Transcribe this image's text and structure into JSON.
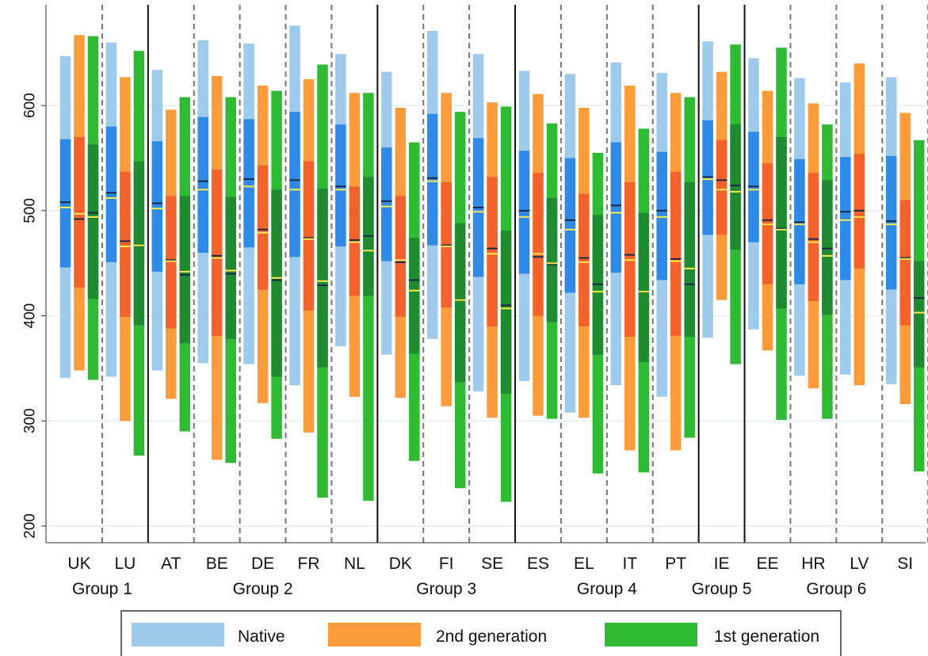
{
  "chart_data": {
    "type": "range-bar",
    "y_axis": {
      "min": 200,
      "max": 700,
      "ticks": [
        200,
        300,
        400,
        500,
        600
      ],
      "gridlines": true
    },
    "legend": {
      "position": "bottom",
      "entries": [
        {
          "key": "native",
          "label": "Native",
          "outer_color": "#9ecbeb",
          "inner_color": "#2e8ae6"
        },
        {
          "key": "second",
          "label": "2nd generation",
          "outer_color": "#fb9b3a",
          "inner_color": "#f4622c"
        },
        {
          "key": "first",
          "label": "1st generation",
          "outer_color": "#2fba34",
          "inner_color": "#1f8a2f"
        }
      ]
    },
    "groups": [
      {
        "label": "Group 1",
        "countries": [
          "UK",
          "LU"
        ]
      },
      {
        "label": "Group 2",
        "countries": [
          "AT",
          "BE",
          "DE",
          "FR",
          "NL"
        ]
      },
      {
        "label": "Group 3",
        "countries": [
          "DK",
          "FI",
          "SE"
        ]
      },
      {
        "label": "Group 4",
        "countries": [
          "ES",
          "EL",
          "IT",
          "PT"
        ]
      },
      {
        "label": "Group 5",
        "countries": [
          "IE"
        ]
      },
      {
        "label": "Group 6",
        "countries": [
          "EE",
          "HR",
          "LV",
          "SI"
        ]
      }
    ],
    "countries": [
      {
        "code": "UK",
        "series": {
          "native": {
            "p5": 341,
            "p25": 446,
            "median": 508,
            "mean": 503,
            "p75": 568,
            "p95": 647
          },
          "second": {
            "p5": 348,
            "p25": 427,
            "median": 492,
            "mean": 497,
            "p75": 570,
            "p95": 667
          },
          "first": {
            "p5": 339,
            "p25": 416,
            "median": 498,
            "mean": 494,
            "p75": 563,
            "p95": 666
          }
        }
      },
      {
        "code": "LU",
        "series": {
          "native": {
            "p5": 342,
            "p25": 451,
            "median": 517,
            "mean": 512,
            "p75": 580,
            "p95": 660
          },
          "second": {
            "p5": 300,
            "p25": 399,
            "median": 471,
            "mean": 466,
            "p75": 537,
            "p95": 627
          },
          "first": {
            "p5": 267,
            "p25": 391,
            "median": 467,
            "mean": 467,
            "p75": 547,
            "p95": 652
          }
        }
      },
      {
        "code": "AT",
        "series": {
          "native": {
            "p5": 348,
            "p25": 442,
            "median": 507,
            "mean": 502,
            "p75": 566,
            "p95": 634
          },
          "second": {
            "p5": 321,
            "p25": 388,
            "median": 453,
            "mean": 452,
            "p75": 514,
            "p95": 596
          },
          "first": {
            "p5": 290,
            "p25": 374,
            "median": 439,
            "mean": 442,
            "p75": 514,
            "p95": 608
          }
        }
      },
      {
        "code": "BE",
        "series": {
          "native": {
            "p5": 355,
            "p25": 460,
            "median": 528,
            "mean": 520,
            "p75": 589,
            "p95": 662
          },
          "second": {
            "p5": 263,
            "p25": 381,
            "median": 457,
            "mean": 455,
            "p75": 539,
            "p95": 628
          },
          "first": {
            "p5": 260,
            "p25": 378,
            "median": 440,
            "mean": 443,
            "p75": 513,
            "p95": 608
          }
        }
      },
      {
        "code": "DE",
        "series": {
          "native": {
            "p5": 354,
            "p25": 465,
            "median": 530,
            "mean": 523,
            "p75": 587,
            "p95": 659
          },
          "second": {
            "p5": 317,
            "p25": 425,
            "median": 482,
            "mean": 479,
            "p75": 543,
            "p95": 619
          },
          "first": {
            "p5": 283,
            "p25": 342,
            "median": 434,
            "mean": 436,
            "p75": 520,
            "p95": 614
          }
        }
      },
      {
        "code": "FR",
        "series": {
          "native": {
            "p5": 334,
            "p25": 456,
            "median": 529,
            "mean": 520,
            "p75": 594,
            "p95": 676
          },
          "second": {
            "p5": 289,
            "p25": 405,
            "median": 474,
            "mean": 473,
            "p75": 547,
            "p95": 625
          },
          "first": {
            "p5": 227,
            "p25": 351,
            "median": 429,
            "mean": 433,
            "p75": 521,
            "p95": 639
          }
        }
      },
      {
        "code": "NL",
        "series": {
          "native": {
            "p5": 371,
            "p25": 466,
            "median": 523,
            "mean": 520,
            "p75": 582,
            "p95": 649
          },
          "second": {
            "p5": 323,
            "p25": 419,
            "median": 472,
            "mean": 470,
            "p75": 523,
            "p95": 612
          },
          "first": {
            "p5": 224,
            "p25": 419,
            "median": 476,
            "mean": 462,
            "p75": 532,
            "p95": 612
          }
        }
      },
      {
        "code": "DK",
        "series": {
          "native": {
            "p5": 363,
            "p25": 452,
            "median": 509,
            "mean": 504,
            "p75": 560,
            "p95": 632
          },
          "second": {
            "p5": 322,
            "p25": 399,
            "median": 451,
            "mean": 453,
            "p75": 514,
            "p95": 598
          },
          "first": {
            "p5": 262,
            "p25": 364,
            "median": 434,
            "mean": 424,
            "p75": 474,
            "p95": 565
          }
        }
      },
      {
        "code": "FI",
        "series": {
          "native": {
            "p5": 378,
            "p25": 467,
            "median": 531,
            "mean": 528,
            "p75": 592,
            "p95": 671
          },
          "second": {
            "p5": 314,
            "p25": 408,
            "median": 467,
            "mean": 466,
            "p75": 527,
            "p95": 612
          },
          "first": {
            "p5": 236,
            "p25": 337,
            "median": 415,
            "mean": 415,
            "p75": 488,
            "p95": 594
          }
        }
      },
      {
        "code": "SE",
        "series": {
          "native": {
            "p5": 328,
            "p25": 437,
            "median": 503,
            "mean": 499,
            "p75": 569,
            "p95": 649
          },
          "second": {
            "p5": 303,
            "p25": 390,
            "median": 464,
            "mean": 459,
            "p75": 532,
            "p95": 603
          },
          "first": {
            "p5": 223,
            "p25": 326,
            "median": 410,
            "mean": 407,
            "p75": 481,
            "p95": 599
          }
        }
      },
      {
        "code": "ES",
        "series": {
          "native": {
            "p5": 338,
            "p25": 440,
            "median": 500,
            "mean": 494,
            "p75": 557,
            "p95": 633
          },
          "second": {
            "p5": 305,
            "p25": 400,
            "median": 456,
            "mean": 459,
            "p75": 536,
            "p95": 611
          },
          "first": {
            "p5": 302,
            "p25": 394,
            "median": 449,
            "mean": 450,
            "p75": 512,
            "p95": 583
          }
        }
      },
      {
        "code": "EL",
        "series": {
          "native": {
            "p5": 308,
            "p25": 422,
            "median": 491,
            "mean": 482,
            "p75": 550,
            "p95": 630
          },
          "second": {
            "p5": 303,
            "p25": 390,
            "median": 455,
            "mean": 451,
            "p75": 516,
            "p95": 598
          },
          "first": {
            "p5": 250,
            "p25": 363,
            "median": 430,
            "mean": 423,
            "p75": 496,
            "p95": 555
          }
        }
      },
      {
        "code": "IT",
        "series": {
          "native": {
            "p5": 334,
            "p25": 441,
            "median": 505,
            "mean": 498,
            "p75": 565,
            "p95": 641
          },
          "second": {
            "p5": 272,
            "p25": 380,
            "median": 458,
            "mean": 453,
            "p75": 527,
            "p95": 619
          },
          "first": {
            "p5": 251,
            "p25": 356,
            "median": 423,
            "mean": 423,
            "p75": 498,
            "p95": 578
          }
        }
      },
      {
        "code": "PT",
        "series": {
          "native": {
            "p5": 323,
            "p25": 434,
            "median": 500,
            "mean": 494,
            "p75": 556,
            "p95": 631
          },
          "second": {
            "p5": 272,
            "p25": 381,
            "median": 454,
            "mean": 452,
            "p75": 537,
            "p95": 612
          },
          "first": {
            "p5": 284,
            "p25": 380,
            "median": 430,
            "mean": 445,
            "p75": 527,
            "p95": 608
          }
        }
      },
      {
        "code": "IE",
        "series": {
          "native": {
            "p5": 379,
            "p25": 477,
            "median": 532,
            "mean": 530,
            "p75": 586,
            "p95": 661
          },
          "second": {
            "p5": 415,
            "p25": 477,
            "median": 529,
            "mean": 520,
            "p75": 567,
            "p95": 632
          },
          "first": {
            "p5": 354,
            "p25": 463,
            "median": 524,
            "mean": 518,
            "p75": 582,
            "p95": 658
          }
        }
      },
      {
        "code": "EE",
        "series": {
          "native": {
            "p5": 387,
            "p25": 470,
            "median": 523,
            "mean": 520,
            "p75": 575,
            "p95": 645
          },
          "second": {
            "p5": 367,
            "p25": 430,
            "median": 491,
            "mean": 487,
            "p75": 545,
            "p95": 614
          },
          "first": {
            "p5": 301,
            "p25": 407,
            "median": 483,
            "mean": 482,
            "p75": 570,
            "p95": 655
          }
        }
      },
      {
        "code": "HR",
        "series": {
          "native": {
            "p5": 343,
            "p25": 430,
            "median": 489,
            "mean": 487,
            "p75": 549,
            "p95": 626
          },
          "second": {
            "p5": 331,
            "p25": 414,
            "median": 473,
            "mean": 470,
            "p75": 536,
            "p95": 602
          },
          "first": {
            "p5": 302,
            "p25": 401,
            "median": 464,
            "mean": 457,
            "p75": 529,
            "p95": 582
          }
        }
      },
      {
        "code": "LV",
        "series": {
          "native": {
            "p5": 344,
            "p25": 434,
            "median": 499,
            "mean": 491,
            "p75": 551,
            "p95": 622
          },
          "second": {
            "p5": 334,
            "p25": 445,
            "median": 500,
            "mean": 494,
            "p75": 554,
            "p95": 640
          },
          "first": {
            "p5": 0,
            "p25": 0,
            "median": 0,
            "mean": 0,
            "p75": 0,
            "p95": 0
          }
        }
      },
      {
        "code": "SI",
        "series": {
          "native": {
            "p5": 335,
            "p25": 425,
            "median": 490,
            "mean": 487,
            "p75": 552,
            "p95": 627
          },
          "second": {
            "p5": 316,
            "p25": 391,
            "median": 455,
            "mean": 454,
            "p75": 510,
            "p95": 593
          },
          "first": {
            "p5": 252,
            "p25": 351,
            "median": 417,
            "mean": 403,
            "p75": 452,
            "p95": 567
          }
        }
      }
    ]
  }
}
